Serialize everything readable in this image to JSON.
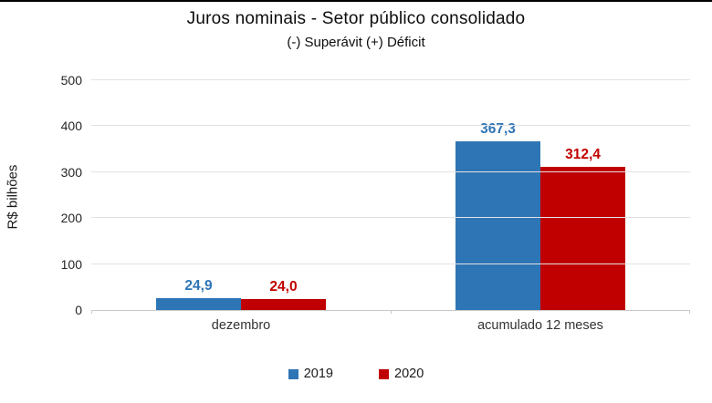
{
  "title": "Juros nominais - Setor público consolidado",
  "subtitle": "(-) Superávit  (+) Déficit",
  "colors": {
    "series_2019": "#2e75b6",
    "series_2020": "#c00000",
    "gridline": "#e2e2e2",
    "axis_line": "#c9c9c9"
  },
  "chart_data": {
    "type": "bar",
    "categories": [
      "dezembro",
      "acumulado 12 meses"
    ],
    "series": [
      {
        "name": "2019",
        "color": "#2e75b6",
        "values": [
          24.9,
          367.3
        ],
        "labels": [
          "24,9",
          "367,3"
        ]
      },
      {
        "name": "2020",
        "color": "#c00000",
        "values": [
          24.0,
          312.4
        ],
        "labels": [
          "24,0",
          "312,4"
        ]
      }
    ],
    "title": "Juros nominais - Setor público consolidado",
    "subtitle": "(-) Superávit  (+) Déficit",
    "xlabel": "",
    "ylabel": "R$ bilhões",
    "ylim": [
      0,
      500
    ],
    "yticks": [
      0,
      100,
      200,
      300,
      400,
      500
    ],
    "grid": true,
    "legend_position": "bottom"
  }
}
